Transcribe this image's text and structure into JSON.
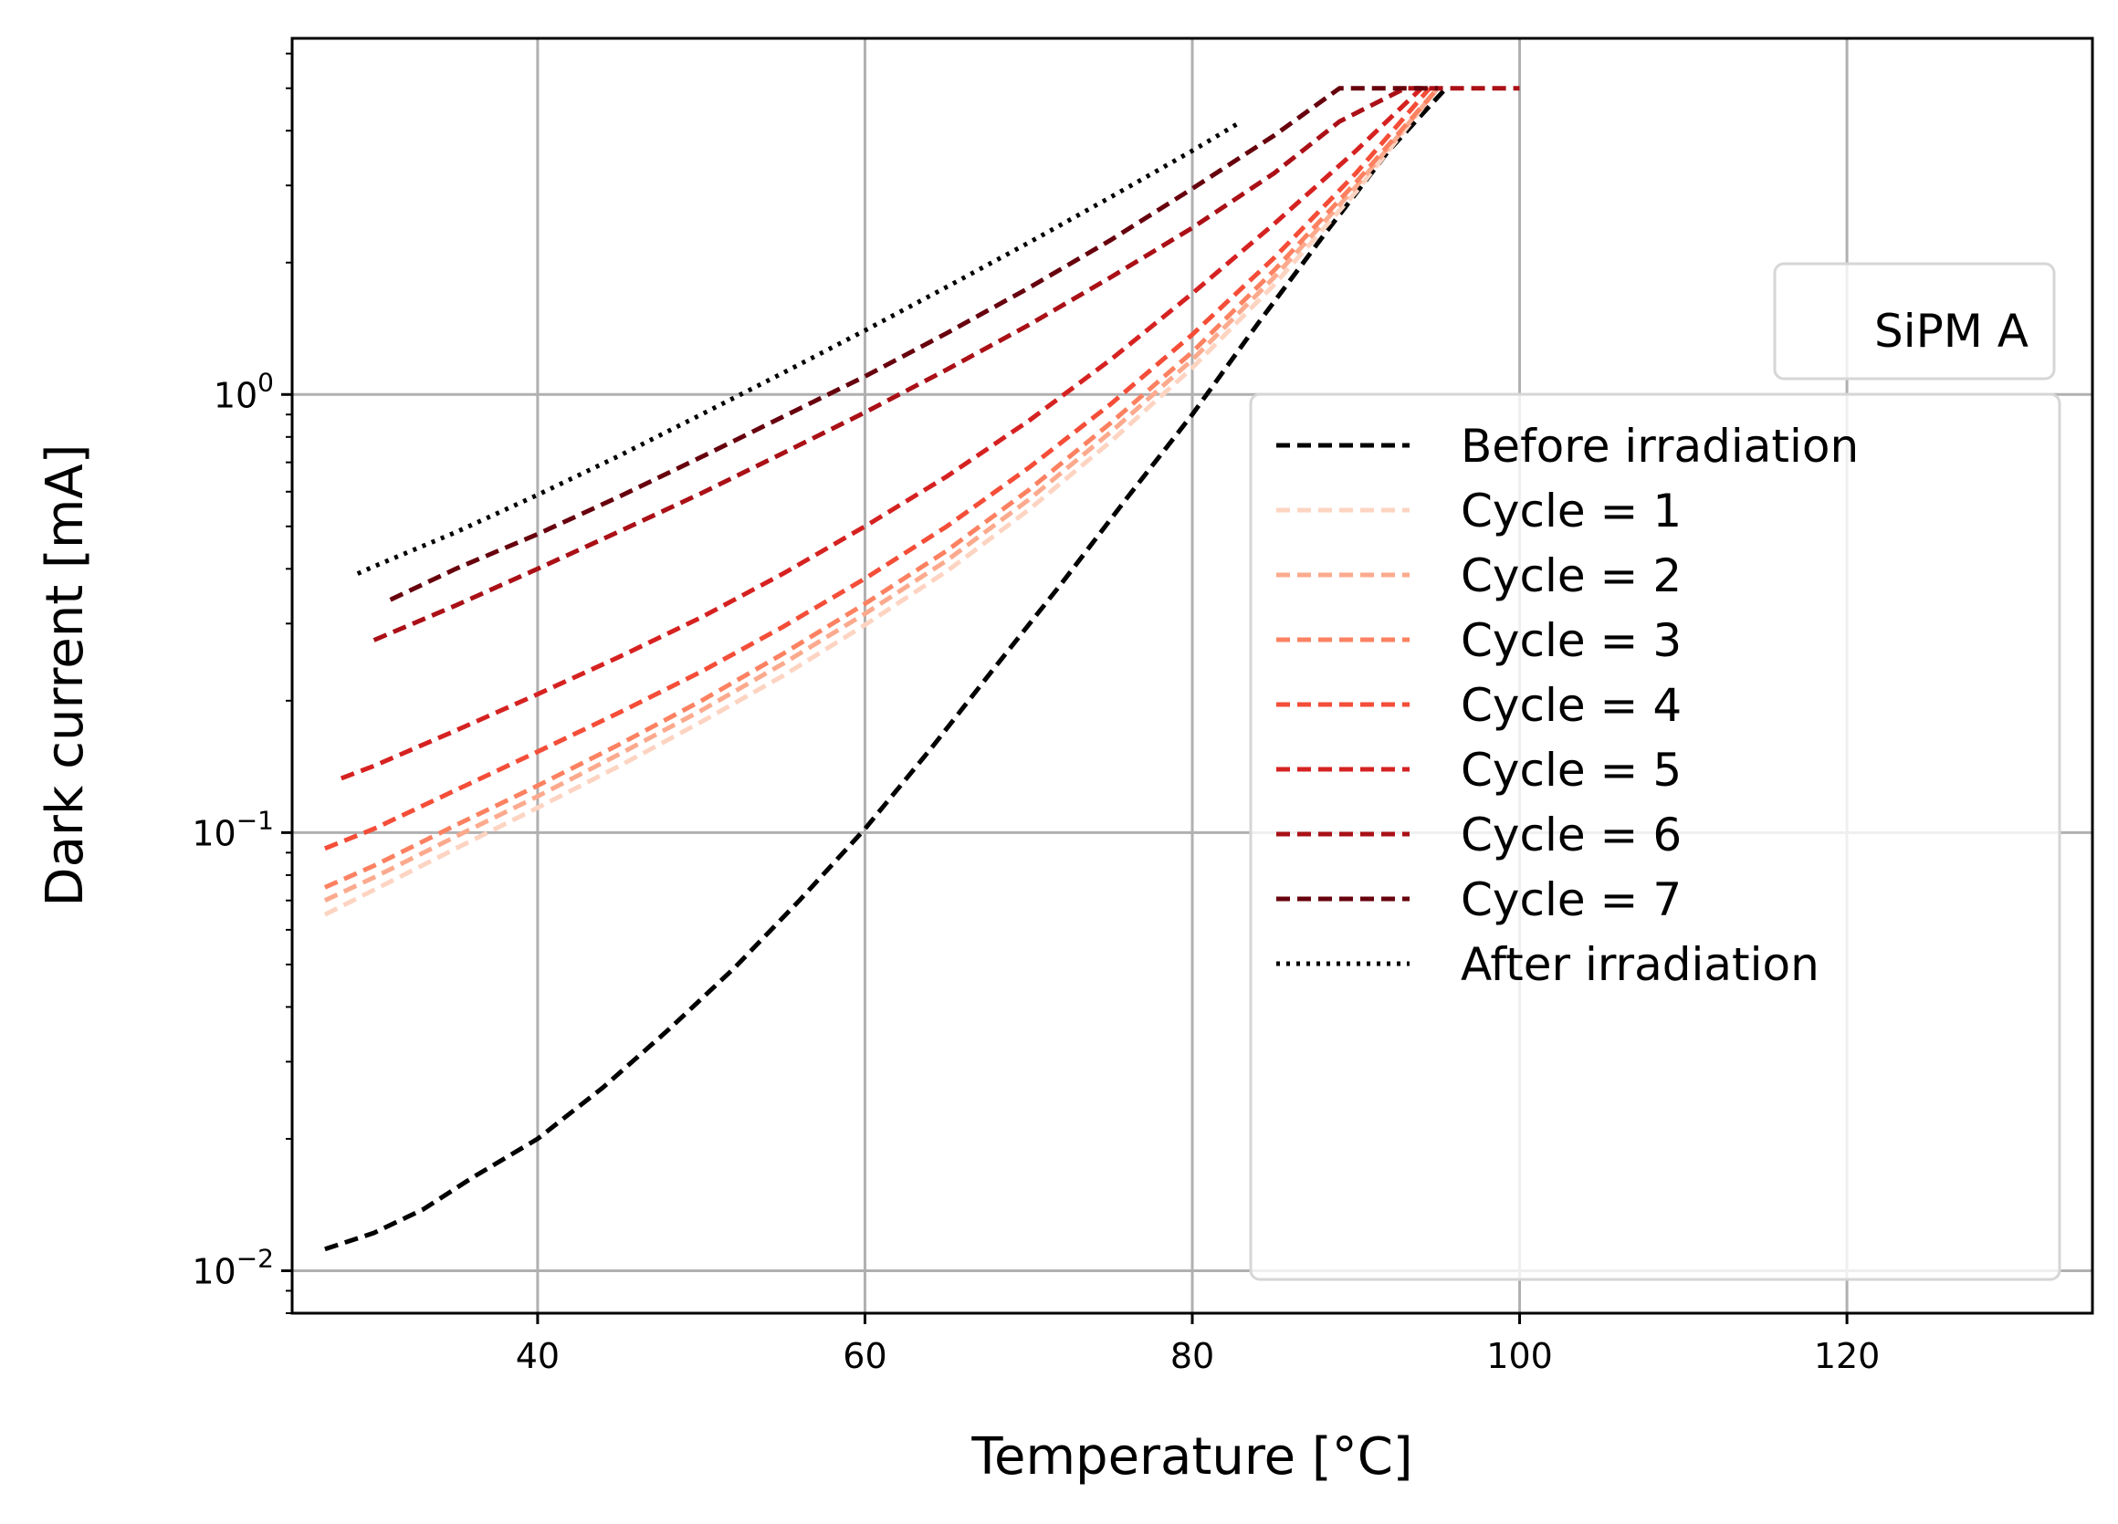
{
  "chart_data": {
    "type": "line",
    "title": "",
    "xlabel": "Temperature [°C]",
    "ylabel": "Dark current [mA]",
    "xlim": [
      25,
      135
    ],
    "ylim": [
      0.008,
      6.5
    ],
    "yscale": "log",
    "xticks": [
      40,
      60,
      80,
      100,
      120
    ],
    "xtick_labels": [
      "40",
      "60",
      "80",
      "100",
      "120"
    ],
    "yticks": [
      {
        "value": 0.01,
        "base": "10",
        "exp": "−2"
      },
      {
        "value": 0.1,
        "base": "10",
        "exp": "−1"
      },
      {
        "value": 1,
        "base": "10",
        "exp": "0"
      }
    ],
    "grid": true,
    "annotation": "SiPM A",
    "legend_position": "lower-right",
    "series": [
      {
        "name": "Before irradiation",
        "color": "#000000",
        "style": "dashed",
        "points": [
          [
            27,
            0.0112
          ],
          [
            30,
            0.0122
          ],
          [
            33,
            0.0138
          ],
          [
            36,
            0.0163
          ],
          [
            40,
            0.02
          ],
          [
            44,
            0.0262
          ],
          [
            48,
            0.0355
          ],
          [
            52,
            0.049
          ],
          [
            56,
            0.07
          ],
          [
            60,
            0.102
          ],
          [
            64,
            0.155
          ],
          [
            68,
            0.24
          ],
          [
            72,
            0.37
          ],
          [
            76,
            0.58
          ],
          [
            80,
            0.9
          ],
          [
            84,
            1.45
          ],
          [
            88,
            2.3
          ],
          [
            92,
            3.6
          ],
          [
            95.5,
            5.0
          ]
        ]
      },
      {
        "name": "Cycle = 1",
        "color": "#fdd4c2",
        "style": "dashed",
        "points": [
          [
            27,
            0.065
          ],
          [
            30,
            0.074
          ],
          [
            35,
            0.092
          ],
          [
            40,
            0.114
          ],
          [
            45,
            0.142
          ],
          [
            50,
            0.179
          ],
          [
            55,
            0.228
          ],
          [
            60,
            0.298
          ],
          [
            65,
            0.395
          ],
          [
            70,
            0.545
          ],
          [
            75,
            0.78
          ],
          [
            80,
            1.15
          ],
          [
            85,
            1.78
          ],
          [
            90,
            2.9
          ],
          [
            95,
            5.0
          ]
        ]
      },
      {
        "name": "Cycle = 2",
        "color": "#fcaa8e",
        "style": "dashed",
        "points": [
          [
            27,
            0.07
          ],
          [
            30,
            0.079
          ],
          [
            35,
            0.098
          ],
          [
            40,
            0.121
          ],
          [
            45,
            0.151
          ],
          [
            50,
            0.19
          ],
          [
            55,
            0.243
          ],
          [
            60,
            0.316
          ],
          [
            65,
            0.418
          ],
          [
            70,
            0.575
          ],
          [
            75,
            0.82
          ],
          [
            80,
            1.2
          ],
          [
            85,
            1.85
          ],
          [
            90,
            2.98
          ],
          [
            95,
            5.0
          ]
        ]
      },
      {
        "name": "Cycle = 3",
        "color": "#fc8161",
        "style": "dashed",
        "points": [
          [
            27,
            0.075
          ],
          [
            30,
            0.084
          ],
          [
            35,
            0.104
          ],
          [
            40,
            0.128
          ],
          [
            45,
            0.159
          ],
          [
            50,
            0.2
          ],
          [
            55,
            0.256
          ],
          [
            60,
            0.333
          ],
          [
            65,
            0.44
          ],
          [
            70,
            0.605
          ],
          [
            75,
            0.86
          ],
          [
            80,
            1.25
          ],
          [
            85,
            1.92
          ],
          [
            90,
            3.05
          ],
          [
            95,
            5.0
          ]
        ]
      },
      {
        "name": "Cycle = 4",
        "color": "#f44d38",
        "style": "dashed",
        "points": [
          [
            27,
            0.092
          ],
          [
            30,
            0.102
          ],
          [
            35,
            0.125
          ],
          [
            40,
            0.153
          ],
          [
            45,
            0.188
          ],
          [
            50,
            0.233
          ],
          [
            55,
            0.295
          ],
          [
            60,
            0.38
          ],
          [
            65,
            0.5
          ],
          [
            70,
            0.68
          ],
          [
            75,
            0.95
          ],
          [
            80,
            1.37
          ],
          [
            85,
            2.05
          ],
          [
            90,
            3.2
          ],
          [
            94.5,
            5.0
          ]
        ]
      },
      {
        "name": "Cycle = 5",
        "color": "#d52221",
        "style": "dashed",
        "points": [
          [
            28,
            0.133
          ],
          [
            30,
            0.142
          ],
          [
            35,
            0.171
          ],
          [
            40,
            0.207
          ],
          [
            45,
            0.252
          ],
          [
            50,
            0.31
          ],
          [
            55,
            0.39
          ],
          [
            60,
            0.5
          ],
          [
            65,
            0.65
          ],
          [
            70,
            0.87
          ],
          [
            75,
            1.2
          ],
          [
            80,
            1.7
          ],
          [
            85,
            2.45
          ],
          [
            90,
            3.6
          ],
          [
            94,
            5.0
          ]
        ]
      },
      {
        "name": "Cycle = 6",
        "color": "#aa1016",
        "style": "dashed",
        "points": [
          [
            30,
            0.275
          ],
          [
            35,
            0.33
          ],
          [
            40,
            0.4
          ],
          [
            45,
            0.487
          ],
          [
            50,
            0.595
          ],
          [
            55,
            0.735
          ],
          [
            60,
            0.91
          ],
          [
            65,
            1.14
          ],
          [
            70,
            1.44
          ],
          [
            75,
            1.85
          ],
          [
            80,
            2.4
          ],
          [
            85,
            3.2
          ],
          [
            89,
            4.2
          ],
          [
            93,
            5.0
          ],
          [
            100,
            5.0
          ]
        ]
      },
      {
        "name": "Cycle = 7",
        "color": "#67000d",
        "style": "dashed",
        "points": [
          [
            31,
            0.34
          ],
          [
            35,
            0.4
          ],
          [
            40,
            0.48
          ],
          [
            45,
            0.585
          ],
          [
            50,
            0.72
          ],
          [
            55,
            0.89
          ],
          [
            60,
            1.1
          ],
          [
            65,
            1.38
          ],
          [
            70,
            1.75
          ],
          [
            75,
            2.25
          ],
          [
            80,
            2.95
          ],
          [
            85,
            3.9
          ],
          [
            89,
            5.0
          ],
          [
            95,
            5.0
          ]
        ]
      },
      {
        "name": "After irradiation",
        "color": "#000000",
        "style": "dotted",
        "points": [
          [
            29,
            0.39
          ],
          [
            30,
            0.405
          ],
          [
            35,
            0.485
          ],
          [
            40,
            0.59
          ],
          [
            45,
            0.725
          ],
          [
            50,
            0.9
          ],
          [
            55,
            1.12
          ],
          [
            60,
            1.4
          ],
          [
            65,
            1.76
          ],
          [
            70,
            2.22
          ],
          [
            75,
            2.82
          ],
          [
            80,
            3.6
          ],
          [
            83,
            4.2
          ]
        ]
      }
    ]
  }
}
